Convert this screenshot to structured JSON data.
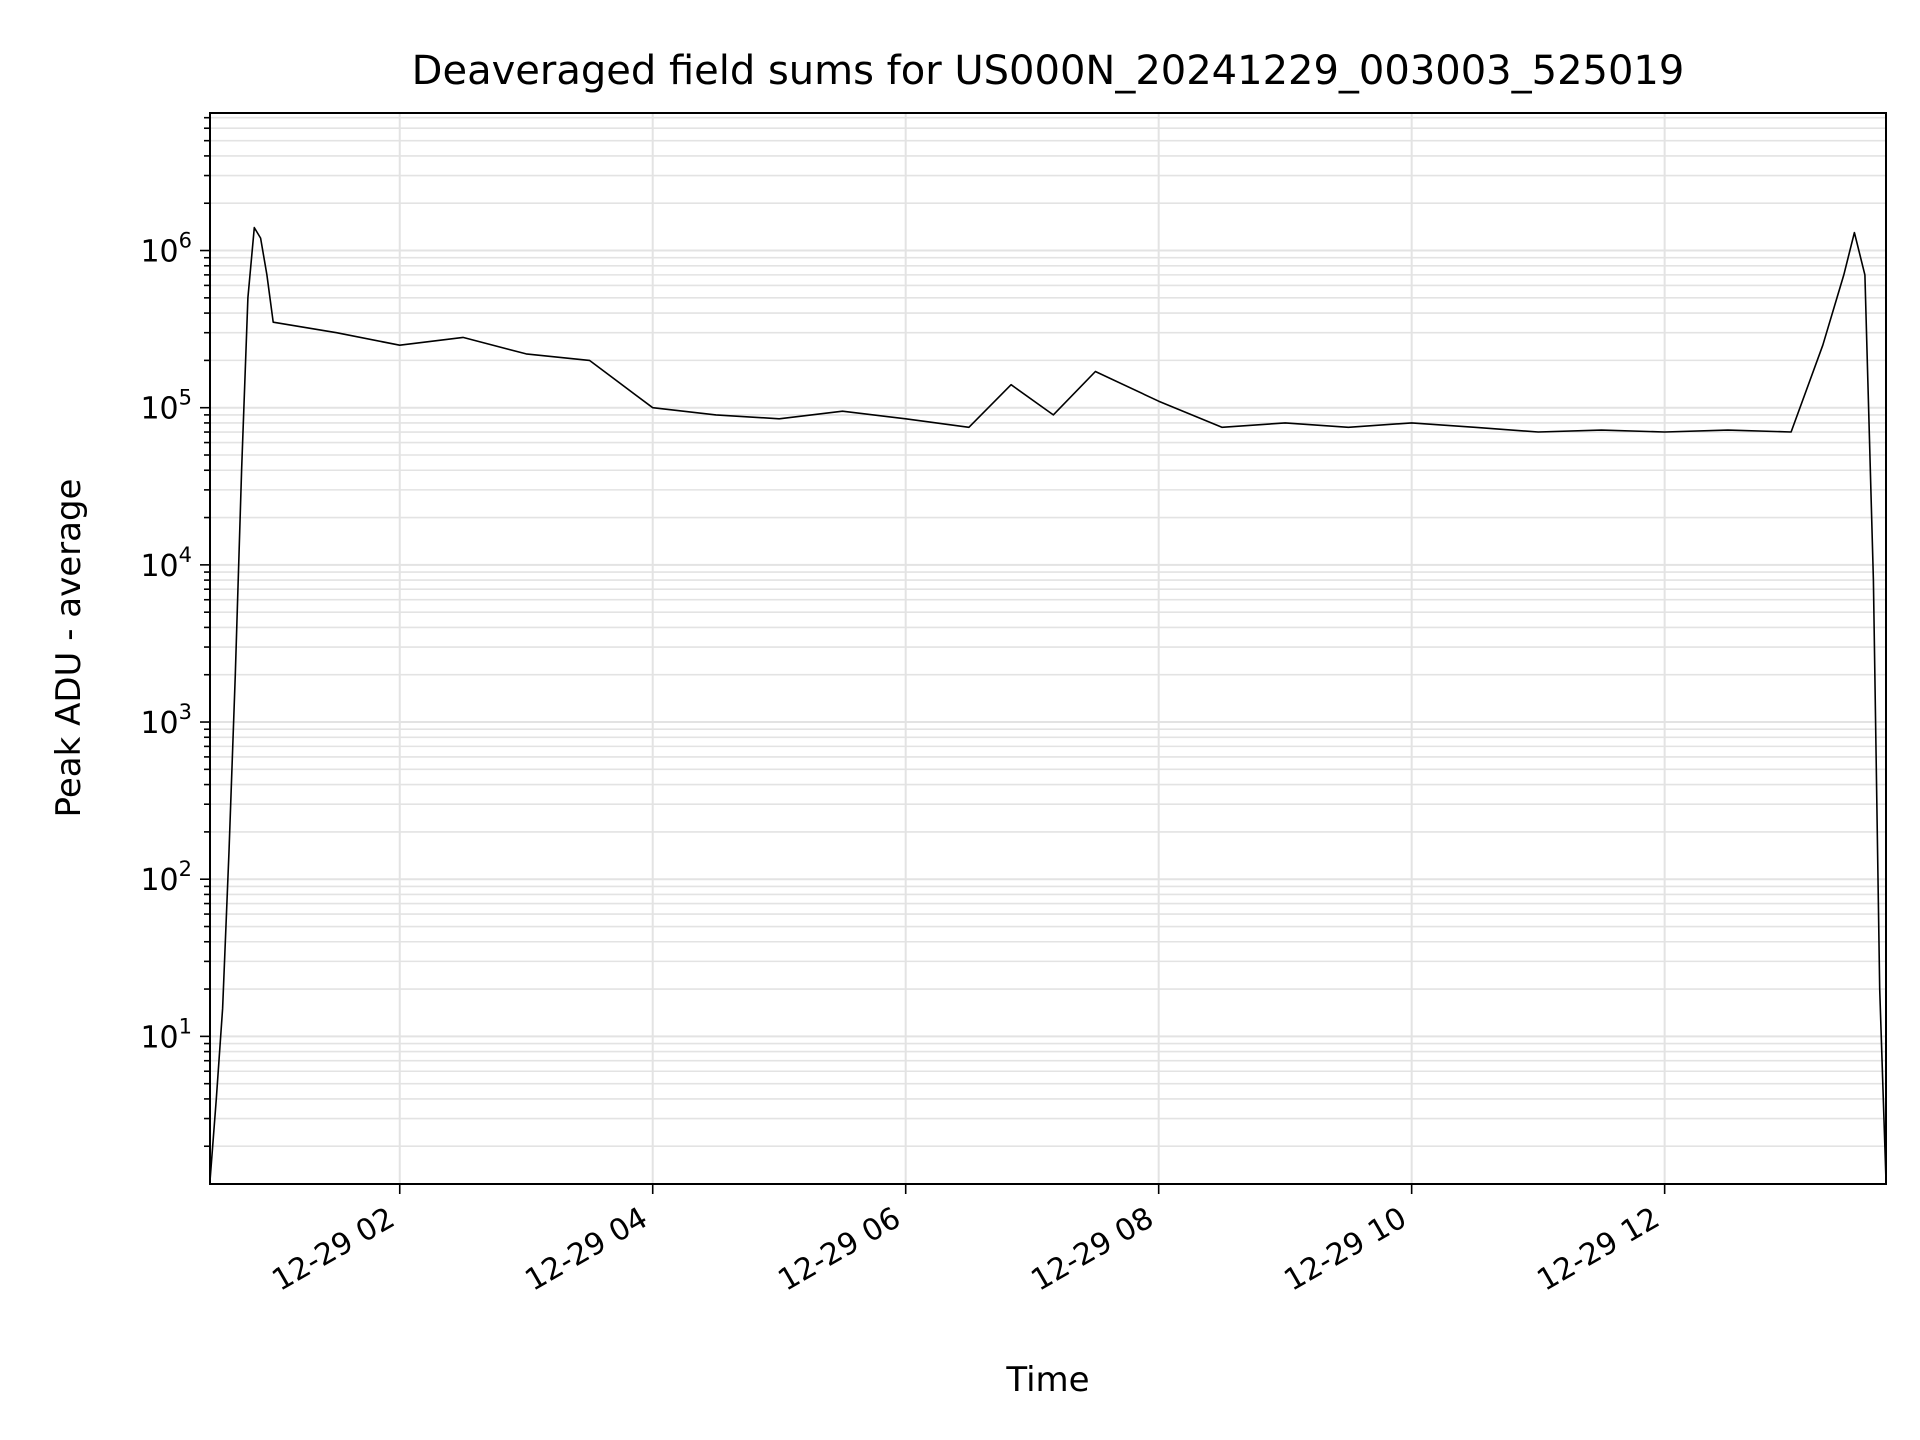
{
  "chart_data": {
    "type": "line",
    "title": "Deaveraged field sums for US000N_20241229_003003_525019",
    "xlabel": "Time",
    "ylabel": "Peak ADU - average",
    "xscale": "time",
    "yscale": "log",
    "xlim_hours": [
      0.5,
      13.75
    ],
    "ylim": [
      1.15,
      7500000
    ],
    "xticks": [
      {
        "value": 2,
        "label": "12-29 02"
      },
      {
        "value": 4,
        "label": "12-29 04"
      },
      {
        "value": 6,
        "label": "12-29 06"
      },
      {
        "value": 8,
        "label": "12-29 08"
      },
      {
        "value": 10,
        "label": "12-29 10"
      },
      {
        "value": 12,
        "label": "12-29 12"
      }
    ],
    "yticks": [
      {
        "value": 10,
        "base": "10",
        "exp": "1"
      },
      {
        "value": 100,
        "base": "10",
        "exp": "2"
      },
      {
        "value": 1000,
        "base": "10",
        "exp": "3"
      },
      {
        "value": 10000,
        "base": "10",
        "exp": "4"
      },
      {
        "value": 100000,
        "base": "10",
        "exp": "5"
      },
      {
        "value": 1000000,
        "base": "10",
        "exp": "6"
      }
    ],
    "grid": true,
    "line_color": "#000000",
    "grid_color": "#e3e3e3",
    "series": [
      {
        "x": [
          "2024-12-29 00:30",
          "2024-12-29 00:33",
          "2024-12-29 00:36",
          "2024-12-29 00:39",
          "2024-12-29 00:42",
          "2024-12-29 00:45",
          "2024-12-29 00:48",
          "2024-12-29 00:51",
          "2024-12-29 00:54",
          "2024-12-29 00:57",
          "2024-12-29 01:00",
          "2024-12-29 01:30",
          "2024-12-29 02:00",
          "2024-12-29 02:30",
          "2024-12-29 03:00",
          "2024-12-29 03:30",
          "2024-12-29 04:00",
          "2024-12-29 04:30",
          "2024-12-29 05:00",
          "2024-12-29 05:30",
          "2024-12-29 06:00",
          "2024-12-29 06:30",
          "2024-12-29 06:50",
          "2024-12-29 07:10",
          "2024-12-29 07:30",
          "2024-12-29 08:00",
          "2024-12-29 08:30",
          "2024-12-29 09:00",
          "2024-12-29 09:30",
          "2024-12-29 10:00",
          "2024-12-29 10:30",
          "2024-12-29 11:00",
          "2024-12-29 11:30",
          "2024-12-29 12:00",
          "2024-12-29 12:30",
          "2024-12-29 13:00",
          "2024-12-29 13:15",
          "2024-12-29 13:25",
          "2024-12-29 13:30",
          "2024-12-29 13:35",
          "2024-12-29 13:39",
          "2024-12-29 13:42",
          "2024-12-29 13:45"
        ],
        "y": [
          1.2,
          4,
          15,
          150,
          2000,
          40000,
          500000,
          1400000,
          1200000,
          700000,
          350000,
          300000,
          250000,
          280000,
          220000,
          200000,
          100000,
          90000,
          85000,
          95000,
          85000,
          75000,
          140000,
          90000,
          170000,
          110000,
          75000,
          80000,
          75000,
          80000,
          75000,
          70000,
          72000,
          70000,
          72000,
          70000,
          250000,
          700000,
          1300000,
          700000,
          8000,
          20,
          1.2
        ]
      }
    ]
  }
}
